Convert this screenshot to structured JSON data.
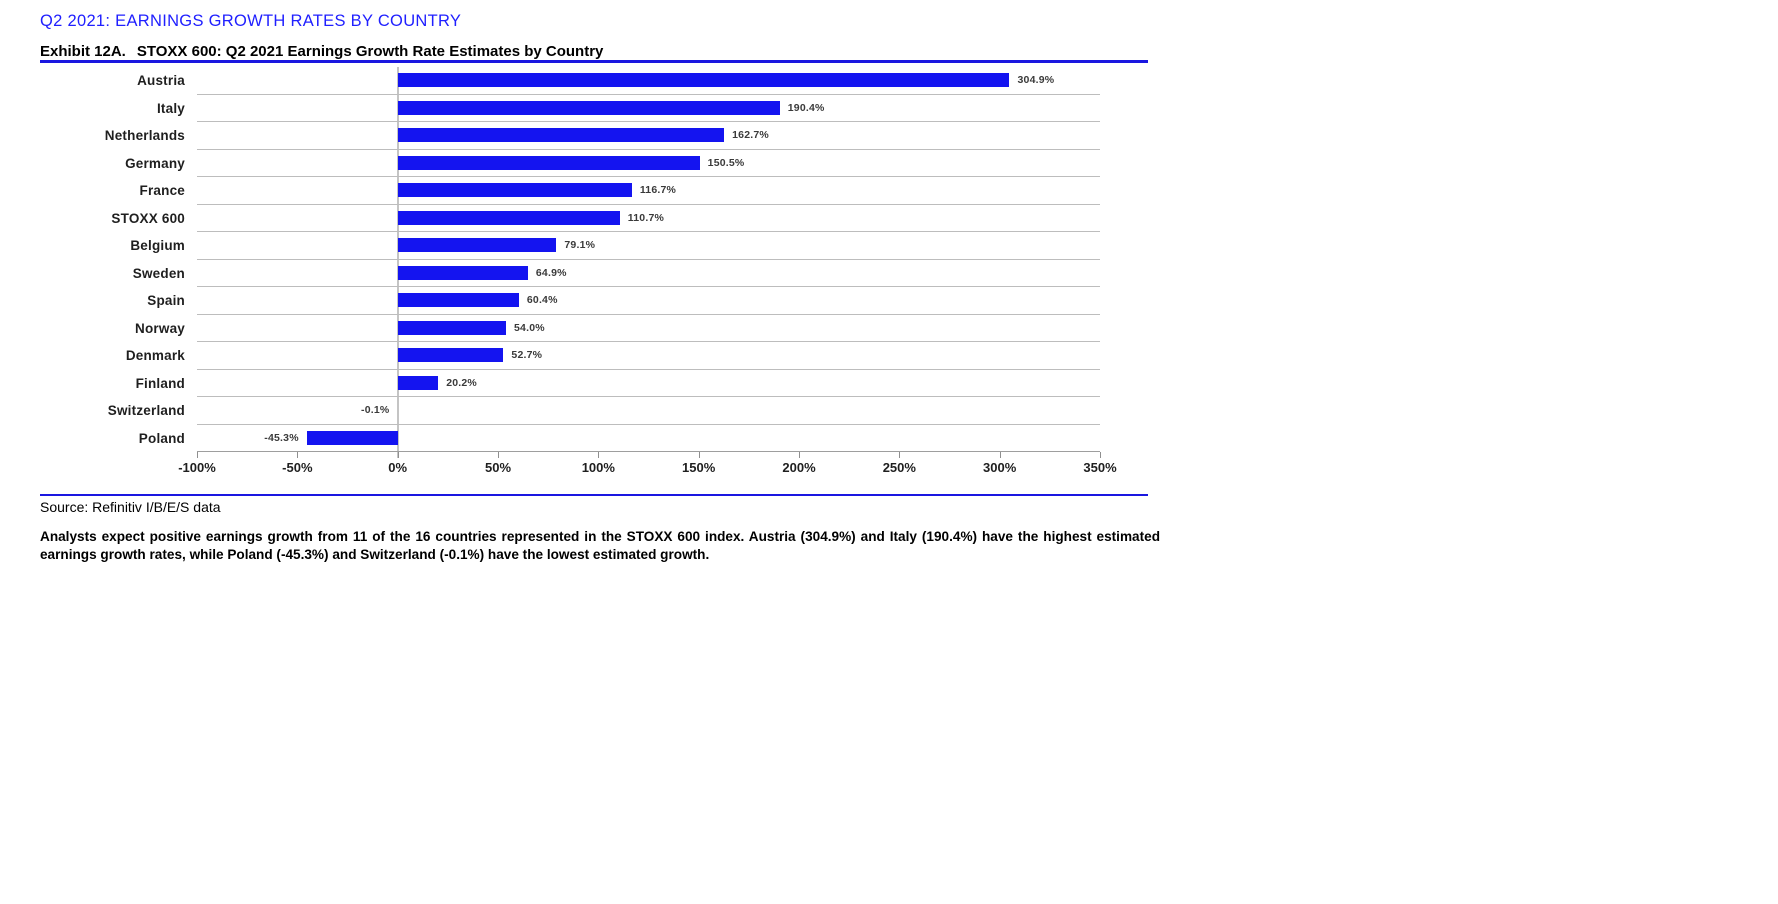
{
  "page": {
    "title": "Q2 2021: EARNINGS GROWTH RATES BY COUNTRY",
    "exhibit_label": "Exhibit 12A.",
    "exhibit_title": "STOXX 600: Q2 2021 Earnings Growth Rate Estimates by Country",
    "source_note": "Source: Refinitiv I/B/E/S data",
    "commentary": "Analysts expect positive earnings growth from 11 of the 16 countries represented in the STOXX 600 index. Austria (304.9%) and Italy (190.4%) have the highest estimated earnings growth rates, while Poland (-45.3%) and Switzerland (-0.1%) have the lowest estimated growth."
  },
  "colors": {
    "heading_blue": "#2020ff",
    "rule_blue": "#1a17e0",
    "bar_blue": "#1414f0",
    "grid_gray": "#bdbdbd",
    "axis_gray": "#c4c4c4"
  },
  "chart_data": {
    "type": "bar",
    "orientation": "horizontal",
    "title": "STOXX 600: Q2 2021 Earnings Growth Rate Estimates by Country",
    "categories": [
      "Austria",
      "Italy",
      "Netherlands",
      "Germany",
      "France",
      "STOXX 600",
      "Belgium",
      "Sweden",
      "Spain",
      "Norway",
      "Denmark",
      "Finland",
      "Switzerland",
      "Poland"
    ],
    "values": [
      304.9,
      190.4,
      162.7,
      150.5,
      116.7,
      110.7,
      79.1,
      64.9,
      60.4,
      54.0,
      52.7,
      20.2,
      -0.1,
      -45.3
    ],
    "value_labels": [
      "304.9%",
      "190.4%",
      "162.7%",
      "150.5%",
      "116.7%",
      "110.7%",
      "79.1%",
      "64.9%",
      "60.4%",
      "54.0%",
      "52.7%",
      "20.2%",
      "-0.1%",
      "-45.3%"
    ],
    "x_ticks": [
      -100,
      -50,
      0,
      50,
      100,
      150,
      200,
      250,
      300,
      350
    ],
    "x_tick_labels": [
      "-100%",
      "-50%",
      "0%",
      "50%",
      "100%",
      "150%",
      "200%",
      "250%",
      "300%",
      "350%"
    ],
    "xlim": [
      -100,
      350
    ],
    "xlabel": "",
    "ylabel": "",
    "legend": null,
    "grid": "horizontal-row-separators",
    "bar_color": "#1414f0",
    "zero_axis": true
  }
}
